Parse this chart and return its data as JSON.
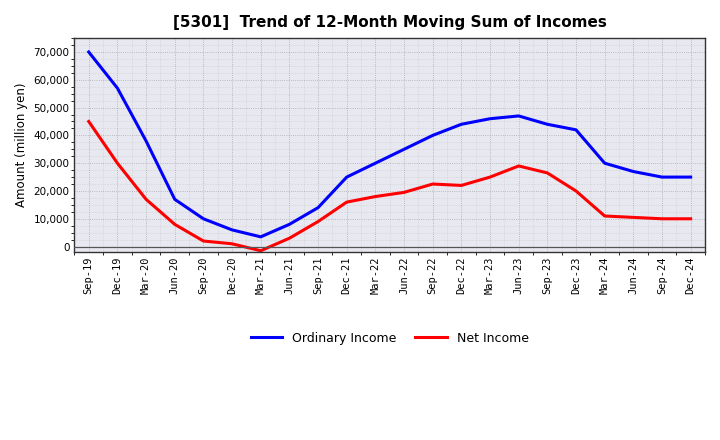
{
  "title": "[5301]  Trend of 12-Month Moving Sum of Incomes",
  "ylabel": "Amount (million yen)",
  "figure_bg": "#ffffff",
  "plot_bg": "#e8e8f0",
  "grid_color": "#aaaaaa",
  "xlabels": [
    "Sep-19",
    "Dec-19",
    "Mar-20",
    "Jun-20",
    "Sep-20",
    "Dec-20",
    "Mar-21",
    "Jun-21",
    "Sep-21",
    "Dec-21",
    "Mar-22",
    "Jun-22",
    "Sep-22",
    "Dec-22",
    "Mar-23",
    "Jun-23",
    "Sep-23",
    "Dec-23",
    "Mar-24",
    "Jun-24",
    "Sep-24",
    "Dec-24"
  ],
  "ordinary_income": [
    70000,
    57000,
    38000,
    17000,
    10000,
    6000,
    3500,
    8000,
    14000,
    25000,
    30000,
    35000,
    40000,
    44000,
    46000,
    47000,
    44000,
    42000,
    30000,
    27000,
    25000,
    25000
  ],
  "net_income": [
    45000,
    30000,
    17000,
    8000,
    2000,
    1000,
    -1500,
    3000,
    9000,
    16000,
    18000,
    19500,
    22500,
    22000,
    25000,
    29000,
    26500,
    20000,
    11000,
    10500,
    10000,
    10000
  ],
  "ordinary_color": "#0000ff",
  "net_color": "#ff0000",
  "ylim": [
    -2000,
    75000
  ],
  "yticks": [
    0,
    10000,
    20000,
    30000,
    40000,
    50000,
    60000,
    70000
  ],
  "line_width": 2.2,
  "title_fontsize": 11,
  "label_fontsize": 8.5,
  "tick_fontsize": 7.5,
  "legend_labels": [
    "Ordinary Income",
    "Net Income"
  ]
}
